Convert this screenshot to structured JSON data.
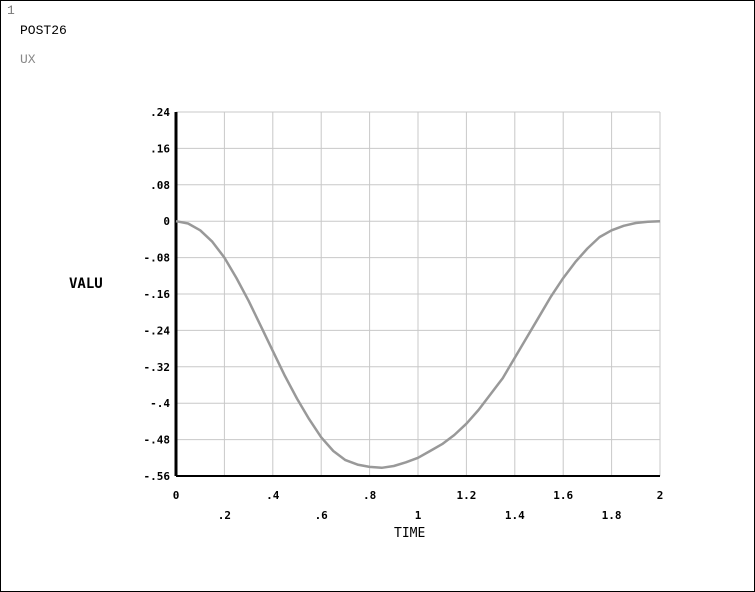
{
  "window": {
    "number": "1",
    "processor": "POST26",
    "variable": "UX"
  },
  "chart_data": {
    "type": "line",
    "xlabel": "TIME",
    "ylabel": "VALU",
    "xlim": [
      0,
      2
    ],
    "ylim": [
      -0.56,
      0.24
    ],
    "grid": true,
    "x_ticks_upper": [
      "0",
      ".4",
      ".8",
      "1.2",
      "1.6",
      "2"
    ],
    "x_ticks_upper_values": [
      0,
      0.4,
      0.8,
      1.2,
      1.6,
      2
    ],
    "x_ticks_lower": [
      ".2",
      ".6",
      "1",
      "1.4",
      "1.8"
    ],
    "x_ticks_lower_values": [
      0.2,
      0.6,
      1,
      1.4,
      1.8
    ],
    "y_ticks": [
      ".24",
      ".16",
      ".08",
      "0",
      "-.08",
      "-.16",
      "-.24",
      "-.32",
      "-.4",
      "-.48",
      "-.56"
    ],
    "y_ticks_values": [
      0.24,
      0.16,
      0.08,
      0,
      -0.08,
      -0.16,
      -0.24,
      -0.32,
      -0.4,
      -0.48,
      -0.56
    ],
    "series": [
      {
        "color": "#999999",
        "x": [
          0,
          0.05,
          0.1,
          0.15,
          0.2,
          0.25,
          0.3,
          0.35,
          0.4,
          0.45,
          0.5,
          0.55,
          0.6,
          0.65,
          0.7,
          0.75,
          0.8,
          0.85,
          0.9,
          0.95,
          1.0,
          1.05,
          1.1,
          1.15,
          1.2,
          1.25,
          1.3,
          1.35,
          1.4,
          1.45,
          1.5,
          1.55,
          1.6,
          1.65,
          1.7,
          1.75,
          1.8,
          1.85,
          1.9,
          1.95,
          2.0
        ],
        "values": [
          0,
          -0.005,
          -0.02,
          -0.045,
          -0.08,
          -0.125,
          -0.175,
          -0.23,
          -0.285,
          -0.34,
          -0.39,
          -0.435,
          -0.475,
          -0.505,
          -0.525,
          -0.535,
          -0.54,
          -0.542,
          -0.538,
          -0.53,
          -0.52,
          -0.505,
          -0.49,
          -0.47,
          -0.445,
          -0.415,
          -0.38,
          -0.345,
          -0.3,
          -0.255,
          -0.21,
          -0.165,
          -0.125,
          -0.09,
          -0.06,
          -0.035,
          -0.02,
          -0.01,
          -0.004,
          -0.001,
          0
        ]
      }
    ]
  }
}
